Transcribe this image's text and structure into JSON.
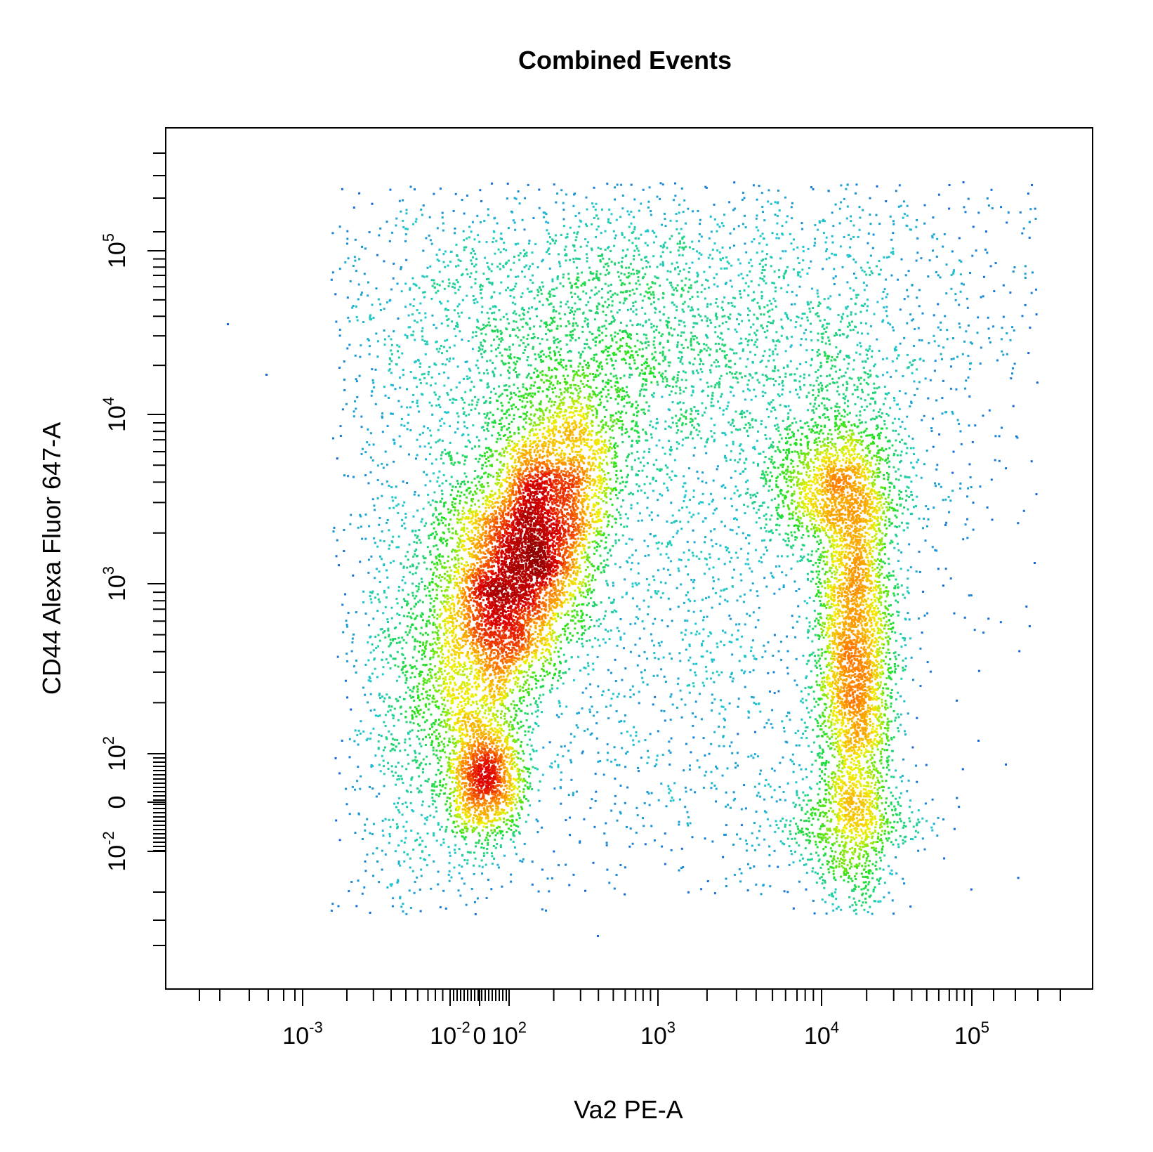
{
  "chart_data": {
    "type": "scatter",
    "title": "Combined Events",
    "xlabel": "Va2 PE-A",
    "ylabel": "CD44 Alexa Fluor 647-A",
    "x_scale": "biexponential",
    "y_scale": "biexponential",
    "x_ticks": [
      {
        "base": "10",
        "exp": "-3"
      },
      {
        "base": "10",
        "exp": "-2"
      },
      {
        "base": "0",
        "exp": ""
      },
      {
        "base": "10",
        "exp": "2"
      },
      {
        "base": "10",
        "exp": "3"
      },
      {
        "base": "10",
        "exp": "4"
      },
      {
        "base": "10",
        "exp": "5"
      }
    ],
    "y_ticks": [
      {
        "base": "10",
        "exp": "-2"
      },
      {
        "base": "0",
        "exp": ""
      },
      {
        "base": "10",
        "exp": "2"
      },
      {
        "base": "10",
        "exp": "3"
      },
      {
        "base": "10",
        "exp": "4"
      },
      {
        "base": "10",
        "exp": "5"
      }
    ],
    "color_scale": [
      "#1030e0",
      "#20c8d0",
      "#20e020",
      "#f0f000",
      "#ff8000",
      "#e00000",
      "#900000"
    ],
    "populations": [
      {
        "name_hidden": true,
        "x_center": 150,
        "y_center": 1300,
        "density": "highest"
      },
      {
        "name_hidden": true,
        "x_center": 30,
        "y_center": 40,
        "density": "high"
      },
      {
        "name_hidden": true,
        "x_center": 17000,
        "y_center": 400,
        "density": "high"
      },
      {
        "name_hidden": true,
        "x_center": 10000,
        "y_center": 4000,
        "density": "medium"
      },
      {
        "name_hidden": true,
        "x_center": 800,
        "y_center": 25000,
        "density": "low"
      }
    ],
    "grid": false,
    "legend": "none"
  }
}
